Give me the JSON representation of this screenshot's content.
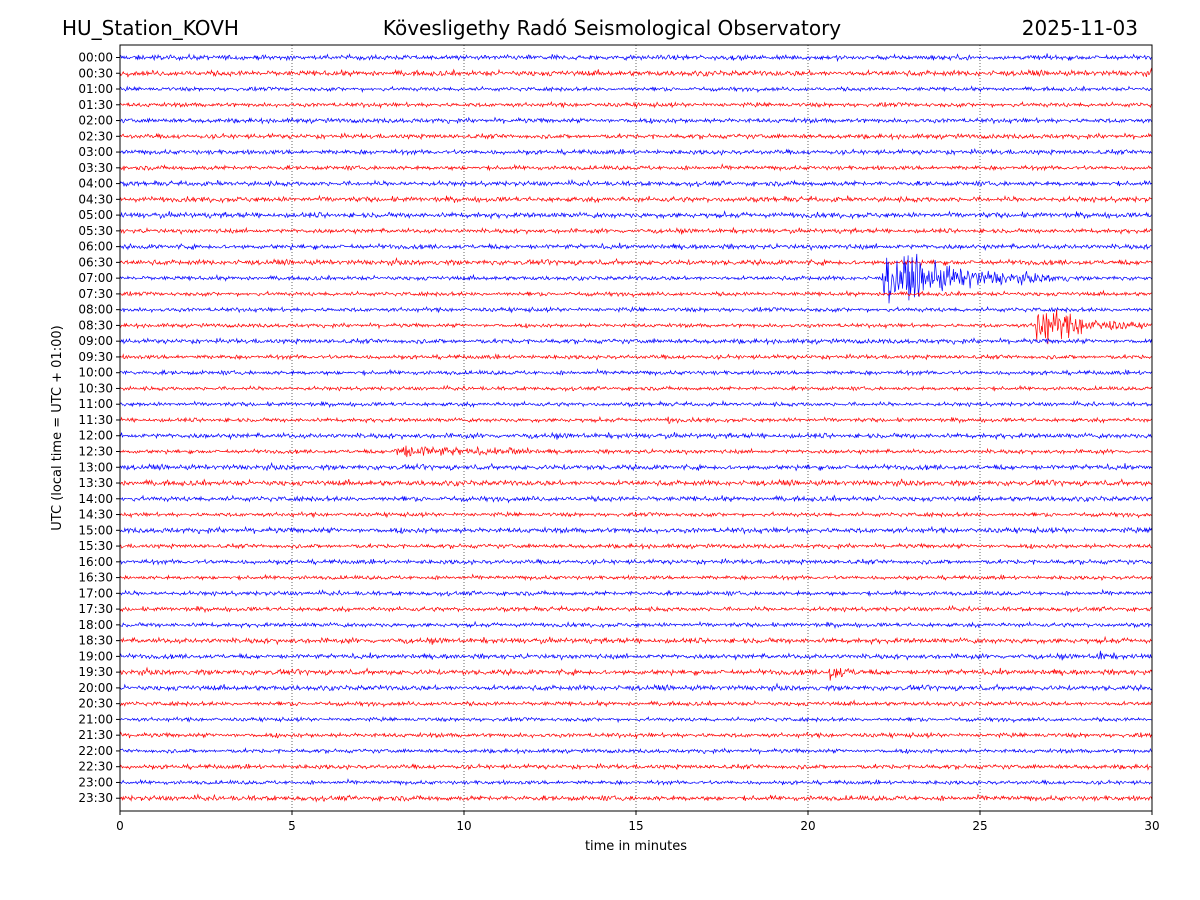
{
  "header": {
    "station": "HU_Station_KOVH",
    "title": "Kövesligethy Radó Seismological Observatory",
    "date": "2025-11-03"
  },
  "chart_data": {
    "type": "line",
    "subtype": "helicorder",
    "xlabel": "time in minutes",
    "ylabel": "UTC (local time = UTC + 01:00)",
    "xlim": [
      0,
      30
    ],
    "x_ticks": [
      0,
      5,
      10,
      15,
      20,
      25,
      30
    ],
    "grid": "vertical dotted at x ticks",
    "colors": [
      "#0000ff",
      "#ff0000"
    ],
    "rows": [
      "00:00",
      "00:30",
      "01:00",
      "01:30",
      "02:00",
      "02:30",
      "03:00",
      "03:30",
      "04:00",
      "04:30",
      "05:00",
      "05:30",
      "06:00",
      "06:30",
      "07:00",
      "07:30",
      "08:00",
      "08:30",
      "09:00",
      "09:30",
      "10:00",
      "10:30",
      "11:00",
      "11:30",
      "12:00",
      "12:30",
      "13:00",
      "13:30",
      "14:00",
      "14:30",
      "15:00",
      "15:30",
      "16:00",
      "16:30",
      "17:00",
      "17:30",
      "18:00",
      "18:30",
      "19:00",
      "19:30",
      "20:00",
      "20:30",
      "21:00",
      "21:30",
      "22:00",
      "22:30",
      "23:00",
      "23:30"
    ],
    "events": [
      {
        "row": "02:00",
        "t_start": 1.0,
        "duration": 1.0,
        "peak": 0.4
      },
      {
        "row": "04:00",
        "t_start": 6.9,
        "duration": 0.8,
        "peak": 0.5
      },
      {
        "row": "07:00",
        "t_start": 22.2,
        "duration": 5.5,
        "peak": 5.5
      },
      {
        "row": "08:30",
        "t_start": 26.6,
        "duration": 3.4,
        "peak": 4.5
      },
      {
        "row": "09:00",
        "t_start": 0.0,
        "duration": 2.5,
        "peak": 0.45
      },
      {
        "row": "10:00",
        "t_start": 13.6,
        "duration": 0.8,
        "peak": 0.55
      },
      {
        "row": "11:30",
        "t_start": 3.3,
        "duration": 0.7,
        "peak": 0.4
      },
      {
        "row": "11:30",
        "t_start": 15.9,
        "duration": 1.2,
        "peak": 0.9
      },
      {
        "row": "11:30",
        "t_start": 19.6,
        "duration": 1.2,
        "peak": 0.7
      },
      {
        "row": "12:00",
        "t_start": 18.8,
        "duration": 0.6,
        "peak": 0.6
      },
      {
        "row": "12:30",
        "t_start": 8.0,
        "duration": 6.0,
        "peak": 1.7
      },
      {
        "row": "12:30",
        "t_start": 11.3,
        "duration": 1.5,
        "peak": 1.4
      },
      {
        "row": "16:00",
        "t_start": 10.5,
        "duration": 0.8,
        "peak": 0.3
      },
      {
        "row": "17:00",
        "t_start": 6.2,
        "duration": 0.5,
        "peak": 0.7
      },
      {
        "row": "18:30",
        "t_start": 28.8,
        "duration": 0.5,
        "peak": 0.8
      },
      {
        "row": "19:00",
        "t_start": 28.4,
        "duration": 1.6,
        "peak": 1.2
      },
      {
        "row": "19:30",
        "t_start": 20.6,
        "duration": 1.8,
        "peak": 1.9
      },
      {
        "row": "20:00",
        "t_start": 25.2,
        "duration": 0.6,
        "peak": 0.25
      },
      {
        "row": "21:00",
        "t_start": 5.3,
        "duration": 0.6,
        "peak": 0.3
      },
      {
        "row": "22:00",
        "t_start": 28.9,
        "duration": 1.1,
        "peak": 0.6
      }
    ]
  }
}
